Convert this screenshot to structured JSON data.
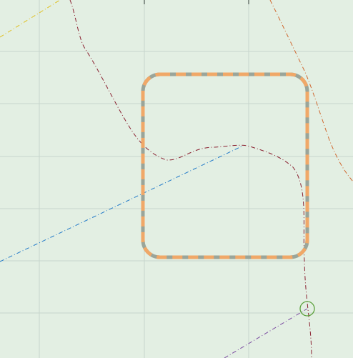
{
  "map": {
    "background_color": "#e3efe3",
    "grid_color": "#c7d6cc",
    "selection_box_color_outer": "#9aa59a",
    "selection_box_color_inner": "#f0a868",
    "routes": [
      {
        "name": "yellow-route",
        "color": "#e0c020",
        "style": "dash-dot"
      },
      {
        "name": "dark-red-route",
        "color": "#8a2030",
        "style": "dash-dot"
      },
      {
        "name": "orange-route",
        "color": "#d06830",
        "style": "dash-dot"
      },
      {
        "name": "blue-route",
        "color": "#1f78c8",
        "style": "dash-dot"
      },
      {
        "name": "purple-route",
        "color": "#7a4aa0",
        "style": "dash-dot"
      }
    ],
    "marker_color": "#5aa03a"
  }
}
